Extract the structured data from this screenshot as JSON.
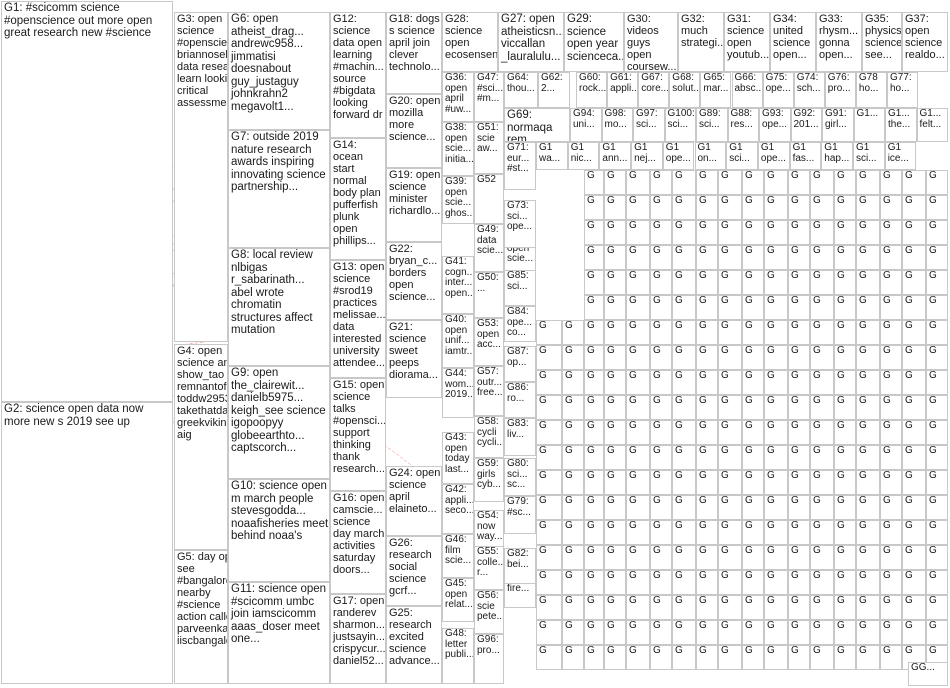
{
  "groups": [
    {
      "id": "G1",
      "label": "G1: #scicomm science #openscience out more open great research new #science"
    },
    {
      "id": "G2",
      "label": "G2: science open data now more new s 2019 see up"
    },
    {
      "id": "G3",
      "label": "G3: open science #openscience briannosek data research learn looking critical assessment"
    },
    {
      "id": "G4",
      "label": "G4: open science answer show_tao remnantofisra... toddw295381... takethatdarwin greekvikingx s aig"
    },
    {
      "id": "G5",
      "label": "G5: day open see #bangalore nearby #science action called parveenkasw... iiscbangalo"
    },
    {
      "id": "G6",
      "label": "G6: open atheist_drag... andrewc958... jimmatisi doesnabout guy_justaguy johnkrahn2 megavolt1..."
    },
    {
      "id": "G7",
      "label": "G7: outside 2019 nature research awards inspiring innovating science partnership..."
    },
    {
      "id": "G8",
      "label": "G8: local review nlbigas r_sabarinath... abel wrote chromatin structures affect mutation"
    },
    {
      "id": "G9",
      "label": "G9: open the_clairewit... danielb5975... keigh_see science igopoopyy globeearthto... captscorch..."
    },
    {
      "id": "G10",
      "label": "G10: science open m march people stevesgodda... noaafisheries meet behind noaa's"
    },
    {
      "id": "G11",
      "label": "G11: science open #scicomm umbc join iamscicomm aaas_doser meet one..."
    },
    {
      "id": "G12",
      "label": "G12: science data open learning #machin... source #bigdata looking forward dr"
    },
    {
      "id": "G13",
      "label": "G13: open science #srod19 practices melissae... data interested university attendee..."
    },
    {
      "id": "G14",
      "label": "G14: ocean start normal body plan pufferfish plunk open phillips..."
    },
    {
      "id": "G15",
      "label": "G15: open science talks #opensci... support thinking thank research..."
    },
    {
      "id": "G16",
      "label": "G16: open camscie... science day march activities saturday doors..."
    },
    {
      "id": "G17",
      "label": "G17: open randerev sharmon... justsayin... crispycur... daniel52..."
    },
    {
      "id": "G18",
      "label": "G18: dogs s science april join clever technolo..."
    },
    {
      "id": "G19",
      "label": "G19: open science minister richardlo..."
    },
    {
      "id": "G20",
      "label": "G20: open mozilla more science..."
    },
    {
      "id": "G21",
      "label": "G21: science sweet peeps diorama..."
    },
    {
      "id": "G22",
      "label": "G22: bryan_c... borders open science..."
    },
    {
      "id": "G24",
      "label": "G24: open science april elaineto..."
    },
    {
      "id": "G25",
      "label": "G25: research excited science advance..."
    },
    {
      "id": "G26",
      "label": "G26: research social science gcrf..."
    },
    {
      "id": "G27",
      "label": "G27: open atheisticsn... viccallan _lauralulu..."
    },
    {
      "id": "G28",
      "label": "G28: science open ecosensen..."
    },
    {
      "id": "G29",
      "label": "G29: science open year scienceca..."
    },
    {
      "id": "G30",
      "label": "G30: videos guys open coursew..."
    },
    {
      "id": "G31",
      "label": "G31: science open youtub..."
    },
    {
      "id": "G32",
      "label": "G32: much strategi..."
    },
    {
      "id": "G33",
      "label": "G33: rhysm... gonna open..."
    },
    {
      "id": "G34",
      "label": "G34: united science open..."
    },
    {
      "id": "G35",
      "label": "G35: physics science see..."
    },
    {
      "id": "G36",
      "label": "G36: open april #uw..."
    },
    {
      "id": "G37",
      "label": "G37: open science realdo..."
    },
    {
      "id": "G38",
      "label": "G38: open scie... initia..."
    },
    {
      "id": "G39",
      "label": "G39: open scie... ghos..."
    },
    {
      "id": "G40",
      "label": "G40: open unif... iamtr..."
    },
    {
      "id": "G41",
      "label": "G41: cogn... inter... open..."
    },
    {
      "id": "G42",
      "label": "G42: appli... seco..."
    },
    {
      "id": "G43",
      "label": "G43: open today last..."
    },
    {
      "id": "G44",
      "label": "G44: wom... 2019..."
    },
    {
      "id": "G45",
      "label": "G45: open relat..."
    },
    {
      "id": "G46",
      "label": "G46: film scie..."
    },
    {
      "id": "G47",
      "label": "G47: #sci... #m..."
    },
    {
      "id": "G48",
      "label": "G48: letter publi..."
    },
    {
      "id": "G49",
      "label": "G49: data scie..."
    },
    {
      "id": "G50",
      "label": "G50: ..."
    },
    {
      "id": "G51",
      "label": "G51: scie aw..."
    },
    {
      "id": "G52",
      "label": "G52"
    },
    {
      "id": "G53",
      "label": "G53: open acc..."
    },
    {
      "id": "G54",
      "label": "G54: now way..."
    },
    {
      "id": "G55",
      "label": "G55: colle... r..."
    },
    {
      "id": "G56",
      "label": "G56: scie pete..."
    },
    {
      "id": "G57",
      "label": "G57: outr... free..."
    },
    {
      "id": "G58",
      "label": "G58: cycli cycli..."
    },
    {
      "id": "G59",
      "label": "G59: girls cyb..."
    },
    {
      "id": "G62",
      "label": "G62: 2..."
    },
    {
      "id": "G64",
      "label": "G64: thou..."
    },
    {
      "id": "G69",
      "label": "G69: normaqa rem..."
    },
    {
      "id": "G71",
      "label": "G71: eur... #st..."
    },
    {
      "id": "G72",
      "label": "G72: open scie..."
    },
    {
      "id": "G73",
      "label": "G73: sci... ope..."
    },
    {
      "id": "G79",
      "label": "G79: #sc..."
    },
    {
      "id": "G80",
      "label": "G80: sci... sc..."
    },
    {
      "id": "G81",
      "label": "G81: fire..."
    },
    {
      "id": "G82",
      "label": "G82: bei..."
    },
    {
      "id": "G83",
      "label": "G83: liv..."
    },
    {
      "id": "G84",
      "label": "G84: ope... co..."
    },
    {
      "id": "G85",
      "label": "G85: sci..."
    },
    {
      "id": "G86",
      "label": "G86: ro..."
    },
    {
      "id": "G87",
      "label": "G87: op..."
    },
    {
      "id": "G96",
      "label": "G96: pro..."
    },
    {
      "id": "G98",
      "label": "G98: mo..."
    }
  ],
  "row1_small": [
    {
      "label": "G60: rock..."
    },
    {
      "label": "G61: appli..."
    },
    {
      "label": "G67: core..."
    },
    {
      "label": "G68: solut..."
    },
    {
      "label": "G65: mar..."
    },
    {
      "label": "G66: absc..."
    },
    {
      "label": "G75: ope..."
    },
    {
      "label": "G74: sch..."
    },
    {
      "label": "G76: pro..."
    },
    {
      "label": "G78 ho..."
    },
    {
      "label": "G77: ho..."
    },
    {
      "label": "G70: face..."
    }
  ],
  "row2_small": [
    {
      "label": "G94: uni..."
    },
    {
      "label": "G98: mo..."
    },
    {
      "label": "G97: sci..."
    },
    {
      "label": "G100: sci..."
    },
    {
      "label": "G89: sci..."
    },
    {
      "label": "G88: res..."
    },
    {
      "label": "G93: ope..."
    },
    {
      "label": "G92: 201..."
    },
    {
      "label": "G91: girl..."
    },
    {
      "label": "G1..."
    },
    {
      "label": "G1... the..."
    },
    {
      "label": "G1... felt..."
    }
  ],
  "row3_small": [
    {
      "label": "G1 wa..."
    },
    {
      "label": "G1 nic..."
    },
    {
      "label": "G1 ann..."
    },
    {
      "label": "G1 nej..."
    },
    {
      "label": "G1 ope..."
    },
    {
      "label": "G1 on..."
    },
    {
      "label": "G1 sci..."
    },
    {
      "label": "G1 ope..."
    },
    {
      "label": "G1 fas..."
    },
    {
      "label": "G1 hap..."
    },
    {
      "label": "G1 sci..."
    },
    {
      "label": "G1 ice..."
    },
    {
      "label": "G1 visi..."
    }
  ],
  "grid_cell_label": "G",
  "bottom_right_label": "GG..."
}
